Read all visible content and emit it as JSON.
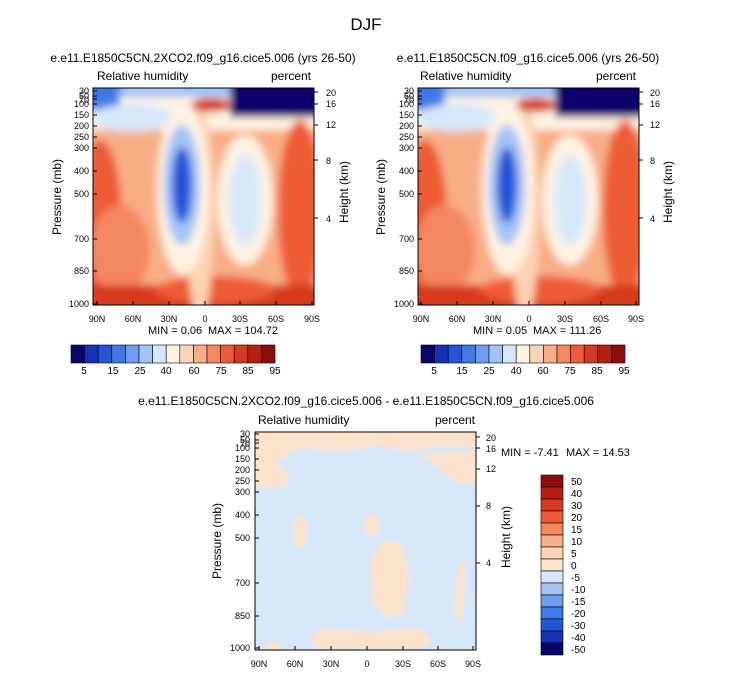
{
  "chart_data": [
    {
      "type": "heatmap",
      "page_title": "DJF",
      "title": "e.e11.E1850C5CN.2XCO2.f09_g16.cice5.006 (yrs 26-50)",
      "left_label": "Relative humidity",
      "right_label": "percent",
      "ylabel": "Pressure (mb)",
      "y2label": "Height (km)",
      "x_ticks": [
        "90N",
        "60N",
        "30N",
        "0",
        "30S",
        "60S",
        "90S"
      ],
      "y_ticks": [
        "30",
        "50",
        "70",
        "100",
        "150",
        "200",
        "250",
        "300",
        "400",
        "500",
        "700",
        "850",
        "1000"
      ],
      "y2_ticks": [
        "20",
        "16",
        "12",
        "8",
        "4"
      ],
      "min_label": "MIN =   0.06",
      "max_label": "MAX = 104.72",
      "colorbar_labels": [
        "5",
        "15",
        "25",
        "40",
        "60",
        "75",
        "85",
        "95"
      ],
      "colorbar_colors": [
        "#08066a",
        "#1730b8",
        "#2355d6",
        "#3f79e6",
        "#6c9df1",
        "#a3c3f6",
        "#d6e7fb",
        "#fff3e4",
        "#fcd3b4",
        "#f8ad87",
        "#f58760",
        "#ee5b35",
        "#d63a1e",
        "#b81f12",
        "#8e0c0b"
      ]
    },
    {
      "type": "heatmap",
      "title": "e.e11.E1850C5CN.f09_g16.cice5.006 (yrs 26-50)",
      "left_label": "Relative humidity",
      "right_label": "percent",
      "ylabel": "Pressure (mb)",
      "y2label": "Height (km)",
      "x_ticks": [
        "90N",
        "60N",
        "30N",
        "0",
        "30S",
        "60S",
        "90S"
      ],
      "y_ticks": [
        "30",
        "50",
        "70",
        "100",
        "150",
        "200",
        "250",
        "300",
        "400",
        "500",
        "700",
        "850",
        "1000"
      ],
      "y2_ticks": [
        "20",
        "16",
        "12",
        "8",
        "4"
      ],
      "min_label": "MIN =   0.05",
      "max_label": "MAX = 111.26",
      "colorbar_labels": [
        "5",
        "15",
        "25",
        "40",
        "60",
        "75",
        "85",
        "95"
      ]
    },
    {
      "type": "heatmap",
      "title": "e.e11.E1850C5CN.2XCO2.f09_g16.cice5.006 - e.e11.E1850C5CN.f09_g16.cice5.006",
      "left_label": "Relative humidity",
      "right_label": "percent",
      "ylabel": "Pressure (mb)",
      "y2label": "Height (km)",
      "x_ticks": [
        "90N",
        "60N",
        "30N",
        "0",
        "30S",
        "60S",
        "90S"
      ],
      "y_ticks": [
        "30",
        "50",
        "70",
        "100",
        "150",
        "200",
        "250",
        "300",
        "400",
        "500",
        "700",
        "850",
        "1000"
      ],
      "y2_ticks": [
        "20",
        "16",
        "12",
        "8",
        "4"
      ],
      "min_label": "MIN =  -7.41",
      "max_label": "MAX =  14.53",
      "colorbar_labels": [
        "50",
        "40",
        "30",
        "20",
        "15",
        "10",
        "5",
        "0",
        "-5",
        "-10",
        "-15",
        "-20",
        "-30",
        "-40",
        "-50"
      ],
      "colorbar_colors": [
        "#8e0c0b",
        "#b81f12",
        "#d63a1e",
        "#ee5b35",
        "#f58760",
        "#f8ad87",
        "#fcd3b4",
        "#fde3cc",
        "#d6e7fb",
        "#a3c3f6",
        "#6c9df1",
        "#3f79e6",
        "#2355d6",
        "#1730b8",
        "#08066a"
      ],
      "field_colors": {
        "positive": "#fde3cc",
        "negative": "#d6e7fb"
      }
    }
  ]
}
